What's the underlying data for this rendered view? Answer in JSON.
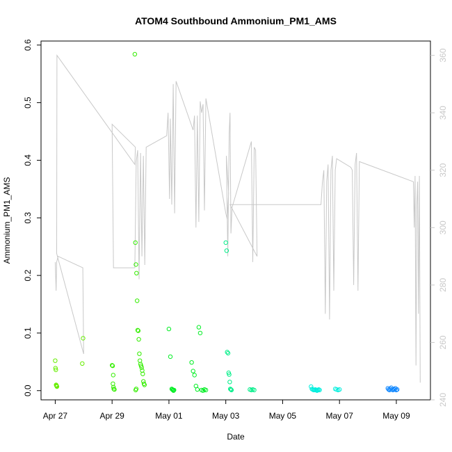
{
  "chart_data": {
    "type": "scatter",
    "title": "ATOM4 Southbound Ammonium_PM1_AMS",
    "xlabel": "Date",
    "ylabel": "Ammonium_PM1_AMS",
    "x_ticks": [
      "Apr 27",
      "Apr 29",
      "May 01",
      "May 03",
      "May 05",
      "May 07",
      "May 09"
    ],
    "x_tick_values": [
      0,
      2,
      4,
      6,
      8,
      10,
      12
    ],
    "x_origin_date": "Apr 27",
    "xlim": [
      -0.5,
      13.2
    ],
    "ylim": [
      -0.016,
      0.607
    ],
    "y_ticks": [
      "0.0",
      "0.1",
      "0.2",
      "0.3",
      "0.4",
      "0.5",
      "0.6"
    ],
    "y2lim": [
      240,
      365
    ],
    "y2_ticks": [
      "240",
      "260",
      "280",
      "300",
      "320",
      "340",
      "360"
    ],
    "grid": false,
    "line_color": "#c8c8c8",
    "secondary_line": [
      [
        0.0,
        288
      ],
      [
        0.03,
        278
      ],
      [
        0.05,
        288
      ],
      [
        0.1,
        290
      ],
      [
        0.97,
        286
      ],
      [
        1.0,
        256
      ],
      [
        0.05,
        291
      ],
      [
        0.06,
        360
      ],
      [
        2.8,
        322
      ],
      [
        2.82,
        328
      ],
      [
        2.0,
        336
      ],
      [
        2.05,
        286
      ],
      [
        2.8,
        286
      ],
      [
        2.85,
        323
      ],
      [
        2.9,
        327
      ],
      [
        2.95,
        282
      ],
      [
        3.0,
        326
      ],
      [
        3.05,
        290
      ],
      [
        3.1,
        325
      ],
      [
        3.15,
        287
      ],
      [
        3.2,
        328
      ],
      [
        3.92,
        332
      ],
      [
        3.97,
        340
      ],
      [
        4.02,
        310
      ],
      [
        4.05,
        338
      ],
      [
        4.1,
        308
      ],
      [
        4.15,
        350
      ],
      [
        4.2,
        305
      ],
      [
        4.25,
        351
      ],
      [
        4.85,
        334
      ],
      [
        4.9,
        339
      ],
      [
        4.95,
        300
      ],
      [
        5.0,
        339
      ],
      [
        5.05,
        302
      ],
      [
        5.1,
        344
      ],
      [
        5.15,
        340
      ],
      [
        5.2,
        343
      ],
      [
        5.25,
        306
      ],
      [
        5.3,
        345
      ],
      [
        6.0,
        305
      ],
      [
        6.05,
        303
      ],
      [
        6.1,
        312
      ],
      [
        6.02,
        325
      ],
      [
        6.07,
        290
      ],
      [
        6.12,
        333
      ],
      [
        6.15,
        340
      ],
      [
        6.18,
        298
      ],
      [
        6.22,
        307
      ],
      [
        6.9,
        330
      ],
      [
        6.95,
        288
      ],
      [
        7.0,
        328
      ],
      [
        7.05,
        327
      ],
      [
        7.1,
        290
      ],
      [
        6.15,
        308
      ],
      [
        9.35,
        308
      ],
      [
        9.4,
        316
      ],
      [
        9.45,
        320
      ],
      [
        9.5,
        270
      ],
      [
        9.55,
        316
      ],
      [
        9.6,
        322
      ],
      [
        9.65,
        268
      ],
      [
        9.7,
        320
      ],
      [
        9.75,
        325
      ],
      [
        9.8,
        278
      ],
      [
        9.85,
        320
      ],
      [
        9.9,
        324
      ],
      [
        10.4,
        321
      ],
      [
        10.45,
        320
      ],
      [
        10.5,
        280
      ],
      [
        10.55,
        322
      ],
      [
        10.6,
        326
      ],
      [
        10.65,
        278
      ],
      [
        10.7,
        323
      ],
      [
        12.6,
        316
      ],
      [
        12.63,
        300
      ],
      [
        12.66,
        318
      ],
      [
        12.69,
        252
      ],
      [
        12.72,
        308
      ],
      [
        12.75,
        316
      ],
      [
        12.78,
        270
      ],
      [
        12.81,
        318
      ],
      [
        12.84,
        246
      ]
    ],
    "series": [
      {
        "color": "#66ee00",
        "x": [
          0.0,
          0.01,
          0.02,
          0.03,
          0.04,
          0.05,
          0.06,
          0.95,
          0.98
        ],
        "y": [
          0.052,
          0.039,
          0.036,
          0.01,
          0.009,
          0.008,
          0.007,
          0.047,
          0.091
        ]
      },
      {
        "color": "#33ee00",
        "x": [
          2.0,
          2.02,
          2.04,
          2.06,
          2.08,
          2.8,
          2.82,
          2.84,
          2.86,
          2.88,
          2.9,
          2.92,
          2.94,
          2.96,
          2.98,
          3.0,
          3.02,
          3.04,
          3.06,
          3.08,
          3.1,
          3.12,
          3.14,
          2.03,
          2.05,
          2.85,
          2.83
        ],
        "y": [
          0.044,
          0.043,
          0.027,
          0.003,
          0.002,
          0.584,
          0.257,
          0.219,
          0.204,
          0.156,
          0.105,
          0.104,
          0.089,
          0.064,
          0.052,
          0.046,
          0.043,
          0.04,
          0.035,
          0.029,
          0.016,
          0.012,
          0.01,
          0.012,
          0.006,
          0.003,
          0.001
        ]
      },
      {
        "color": "#00ee22",
        "x": [
          4.0,
          4.05,
          4.1,
          4.12,
          4.14,
          4.16,
          4.18,
          4.8,
          4.85,
          4.9,
          4.95,
          5.0,
          5.05,
          5.1,
          5.15,
          5.2,
          5.25,
          5.3
        ],
        "y": [
          0.107,
          0.059,
          0.003,
          0.002,
          0.001,
          0.0,
          0.001,
          0.049,
          0.034,
          0.027,
          0.008,
          0.002,
          0.11,
          0.1,
          0.001,
          0.0,
          0.002,
          0.001
        ]
      },
      {
        "color": "#00ee88",
        "x": [
          6.0,
          6.03,
          6.05,
          6.08,
          6.1,
          6.12,
          6.14,
          6.16,
          6.18,
          6.2,
          6.85,
          6.9,
          6.95,
          7.0
        ],
        "y": [
          0.257,
          0.243,
          0.067,
          0.065,
          0.031,
          0.028,
          0.015,
          0.003,
          0.002,
          0.001,
          0.002,
          0.001,
          0.002,
          0.001
        ]
      },
      {
        "color": "#00eedd",
        "x": [
          9.0,
          9.03,
          9.06,
          9.09,
          9.12,
          9.15,
          9.18,
          9.21,
          9.24,
          9.27,
          9.3,
          9.85,
          9.9,
          9.95,
          10.0
        ],
        "y": [
          0.007,
          0.003,
          0.002,
          0.001,
          0.001,
          0.002,
          0.001,
          0.0,
          0.001,
          0.002,
          0.001,
          0.003,
          0.002,
          0.001,
          0.002
        ]
      },
      {
        "color": "#1188ff",
        "x": [
          11.7,
          11.73,
          11.76,
          11.79,
          11.82,
          11.85,
          11.88,
          11.91,
          11.94,
          11.97,
          12.0,
          12.03
        ],
        "y": [
          0.004,
          0.002,
          0.001,
          0.003,
          0.005,
          0.002,
          0.001,
          0.003,
          0.002,
          0.004,
          0.001,
          0.002
        ]
      }
    ]
  }
}
